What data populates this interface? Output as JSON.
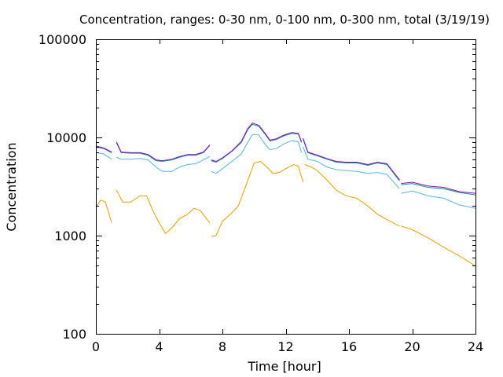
{
  "chart_data": {
    "type": "line",
    "title": "Concentration, ranges: 0-30 nm, 0-100 nm, 0-300 nm, total (3/19/19)",
    "xlabel": "Time [hour]",
    "ylabel": "Concentration",
    "xlim": [
      0,
      24
    ],
    "ylim": [
      100,
      100000
    ],
    "yscale": "log",
    "grid": false,
    "x_ticks": [
      0,
      4,
      8,
      12,
      16,
      20,
      24
    ],
    "x_tick_labels": [
      "0",
      "4",
      "8",
      "12",
      "16",
      "20",
      "24"
    ],
    "y_ticks": [
      100,
      1000,
      10000,
      100000
    ],
    "y_tick_labels": [
      "100",
      "1000",
      "10000",
      "100000"
    ],
    "series": [
      {
        "color": "#e69f00",
        "segments": [
          [
            [
              0.0,
              1950
            ],
            [
              0.3,
              2300
            ],
            [
              0.6,
              2200
            ],
            [
              1.0,
              1350
            ]
          ],
          [
            [
              1.3,
              2900
            ],
            [
              1.7,
              2200
            ],
            [
              2.2,
              2200
            ],
            [
              2.8,
              2550
            ],
            [
              3.2,
              2550
            ],
            [
              3.6,
              1800
            ],
            [
              4.0,
              1350
            ],
            [
              4.4,
              1050
            ],
            [
              4.8,
              1200
            ],
            [
              5.3,
              1500
            ],
            [
              5.8,
              1650
            ],
            [
              6.2,
              1900
            ],
            [
              6.6,
              1800
            ],
            [
              7.2,
              1350
            ]
          ],
          [
            [
              7.3,
              980
            ],
            [
              7.6,
              1000
            ],
            [
              8.0,
              1400
            ],
            [
              8.5,
              1650
            ],
            [
              9.0,
              2000
            ],
            [
              9.5,
              3300
            ],
            [
              10.0,
              5500
            ],
            [
              10.4,
              5700
            ],
            [
              10.8,
              5000
            ],
            [
              11.2,
              4300
            ],
            [
              11.6,
              4400
            ],
            [
              12.0,
              4800
            ],
            [
              12.5,
              5300
            ],
            [
              12.8,
              5100
            ],
            [
              13.1,
              3500
            ]
          ],
          [
            [
              13.2,
              5300
            ],
            [
              13.6,
              5000
            ],
            [
              14.0,
              4600
            ],
            [
              14.6,
              3700
            ],
            [
              15.2,
              2900
            ],
            [
              15.8,
              2550
            ],
            [
              16.5,
              2400
            ],
            [
              17.2,
              2000
            ],
            [
              17.8,
              1650
            ],
            [
              18.6,
              1400
            ],
            [
              19.2,
              1250
            ]
          ],
          [
            [
              19.3,
              1250
            ],
            [
              20.0,
              1150
            ],
            [
              21.0,
              950
            ],
            [
              22.0,
              760
            ],
            [
              23.0,
              620
            ],
            [
              24.0,
              490
            ]
          ]
        ]
      },
      {
        "color": "#56b4e9",
        "segments": [
          [
            [
              0.0,
              7000
            ],
            [
              0.5,
              6800
            ],
            [
              1.0,
              6000
            ]
          ],
          [
            [
              1.3,
              6300
            ],
            [
              1.6,
              6000
            ],
            [
              2.2,
              6000
            ],
            [
              2.8,
              6100
            ],
            [
              3.3,
              5900
            ],
            [
              3.8,
              5000
            ],
            [
              4.2,
              4500
            ],
            [
              4.8,
              4500
            ],
            [
              5.3,
              5000
            ],
            [
              5.8,
              5300
            ],
            [
              6.3,
              5400
            ],
            [
              6.8,
              5900
            ],
            [
              7.2,
              6400
            ]
          ],
          [
            [
              7.3,
              4500
            ],
            [
              7.6,
              4300
            ],
            [
              8.0,
              4800
            ],
            [
              8.6,
              5700
            ],
            [
              9.2,
              6800
            ],
            [
              9.6,
              8900
            ],
            [
              9.9,
              10700
            ],
            [
              10.3,
              10600
            ],
            [
              10.7,
              8500
            ],
            [
              11.0,
              7500
            ],
            [
              11.4,
              7700
            ],
            [
              11.9,
              8600
            ],
            [
              12.4,
              9300
            ],
            [
              12.8,
              9000
            ],
            [
              13.0,
              7000
            ]
          ],
          [
            [
              13.1,
              8000
            ],
            [
              13.4,
              6000
            ],
            [
              14.0,
              5700
            ],
            [
              14.6,
              5000
            ],
            [
              15.2,
              4700
            ],
            [
              15.8,
              4600
            ],
            [
              16.5,
              4500
            ],
            [
              17.2,
              4300
            ],
            [
              17.8,
              4400
            ],
            [
              18.4,
              4200
            ],
            [
              19.2,
              3000
            ]
          ],
          [
            [
              19.3,
              2700
            ],
            [
              20.0,
              2850
            ],
            [
              21.0,
              2550
            ],
            [
              22.0,
              2400
            ],
            [
              23.0,
              2050
            ],
            [
              24.0,
              1900
            ]
          ]
        ]
      },
      {
        "color": "#009e73",
        "segments": [
          [
            [
              0.0,
              8000
            ],
            [
              0.5,
              7700
            ],
            [
              1.0,
              7000
            ]
          ],
          [
            [
              1.3,
              8800
            ],
            [
              1.6,
              7000
            ],
            [
              2.2,
              6900
            ],
            [
              2.8,
              6900
            ],
            [
              3.3,
              6600
            ],
            [
              3.8,
              5800
            ],
            [
              4.2,
              5700
            ],
            [
              4.8,
              5900
            ],
            [
              5.3,
              6300
            ],
            [
              5.8,
              6600
            ],
            [
              6.3,
              6600
            ],
            [
              6.8,
              7000
            ],
            [
              7.2,
              8300
            ]
          ],
          [
            [
              7.3,
              5800
            ],
            [
              7.6,
              5600
            ],
            [
              8.0,
              6100
            ],
            [
              8.6,
              7200
            ],
            [
              9.2,
              8900
            ],
            [
              9.6,
              12000
            ],
            [
              9.9,
              13600
            ],
            [
              10.3,
              13000
            ],
            [
              10.7,
              10800
            ],
            [
              11.0,
              9200
            ],
            [
              11.4,
              9500
            ],
            [
              11.9,
              10400
            ],
            [
              12.4,
              11000
            ],
            [
              12.8,
              10800
            ],
            [
              13.0,
              8900
            ]
          ],
          [
            [
              13.1,
              9600
            ],
            [
              13.4,
              7000
            ],
            [
              14.0,
              6500
            ],
            [
              14.6,
              6000
            ],
            [
              15.2,
              5600
            ],
            [
              15.8,
              5500
            ],
            [
              16.5,
              5500
            ],
            [
              17.2,
              5200
            ],
            [
              17.8,
              5500
            ],
            [
              18.4,
              5300
            ],
            [
              19.2,
              3600
            ]
          ],
          [
            [
              19.3,
              3300
            ],
            [
              20.0,
              3400
            ],
            [
              21.0,
              3100
            ],
            [
              22.0,
              3000
            ],
            [
              23.0,
              2750
            ],
            [
              24.0,
              2600
            ]
          ]
        ]
      },
      {
        "color": "#9400d3",
        "segments": [
          [
            [
              0.0,
              8200
            ],
            [
              0.5,
              7800
            ],
            [
              1.0,
              7100
            ]
          ],
          [
            [
              1.3,
              9000
            ],
            [
              1.6,
              7100
            ],
            [
              2.2,
              7000
            ],
            [
              2.8,
              7000
            ],
            [
              3.3,
              6700
            ],
            [
              3.8,
              5900
            ],
            [
              4.2,
              5800
            ],
            [
              4.8,
              6000
            ],
            [
              5.3,
              6400
            ],
            [
              5.8,
              6700
            ],
            [
              6.3,
              6700
            ],
            [
              6.8,
              7100
            ],
            [
              7.2,
              8400
            ]
          ],
          [
            [
              7.3,
              5900
            ],
            [
              7.6,
              5700
            ],
            [
              8.0,
              6200
            ],
            [
              8.6,
              7300
            ],
            [
              9.2,
              9100
            ],
            [
              9.6,
              12300
            ],
            [
              9.9,
              14000
            ],
            [
              10.3,
              13300
            ],
            [
              10.7,
              11000
            ],
            [
              11.0,
              9400
            ],
            [
              11.4,
              9700
            ],
            [
              11.9,
              10600
            ],
            [
              12.4,
              11200
            ],
            [
              12.8,
              11000
            ],
            [
              13.0,
              9000
            ]
          ],
          [
            [
              13.1,
              9800
            ],
            [
              13.4,
              7100
            ],
            [
              14.0,
              6600
            ],
            [
              14.6,
              6100
            ],
            [
              15.2,
              5700
            ],
            [
              15.8,
              5600
            ],
            [
              16.5,
              5600
            ],
            [
              17.2,
              5300
            ],
            [
              17.8,
              5600
            ],
            [
              18.4,
              5400
            ],
            [
              19.2,
              3700
            ]
          ],
          [
            [
              19.3,
              3400
            ],
            [
              20.0,
              3500
            ],
            [
              21.0,
              3200
            ],
            [
              22.0,
              3100
            ],
            [
              23.0,
              2800
            ],
            [
              24.0,
              2700
            ]
          ]
        ]
      }
    ]
  }
}
